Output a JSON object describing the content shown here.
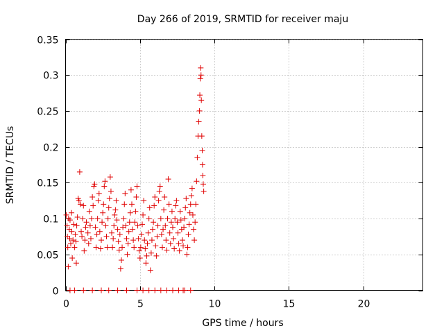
{
  "chart_data": {
    "type": "scatter",
    "title": "Day 266 of 2019, SRMTID for receiver maju",
    "xlabel": "GPS time / hours",
    "ylabel": "SRMTID / TECUs",
    "xlim": [
      0,
      24
    ],
    "ylim": [
      0,
      0.35
    ],
    "x_ticks": [
      0,
      5,
      10,
      15,
      20
    ],
    "y_ticks": [
      0,
      0.05,
      0.1,
      0.15,
      0.2,
      0.25,
      0.3,
      0.35
    ],
    "x_tick_labels": [
      "0",
      "5",
      "10",
      "15",
      "20"
    ],
    "y_tick_labels": [
      "0",
      "0.05",
      "0.1",
      "0.15",
      "0.2",
      "0.25",
      "0.3",
      "0.35"
    ],
    "grid": true,
    "marker": "plus",
    "series": [
      {
        "name": "SRMTID",
        "color": "#e00000",
        "points": [
          [
            0.05,
            0.105
          ],
          [
            0.1,
            0.09
          ],
          [
            0.12,
            0.075
          ],
          [
            0.15,
            0.06
          ],
          [
            0.18,
            0.033
          ],
          [
            0.2,
            0.1
          ],
          [
            0.25,
            0.085
          ],
          [
            0.28,
            0.072
          ],
          [
            0.3,
            0.098
          ],
          [
            0.35,
            0.065
          ],
          [
            0.4,
            0.108
          ],
          [
            0.42,
            0.082
          ],
          [
            0.45,
            0.045
          ],
          [
            0.5,
            0.07
          ],
          [
            0.55,
            0.092
          ],
          [
            0.6,
            0.06
          ],
          [
            0.65,
            0.078
          ],
          [
            0.7,
            0.068
          ],
          [
            0.72,
            0.038
          ],
          [
            0.75,
            0.09
          ],
          [
            0.8,
            0.102
          ],
          [
            0.85,
            0.128
          ],
          [
            0.9,
            0.125
          ],
          [
            0.95,
            0.165
          ],
          [
            1.0,
            0.12
          ],
          [
            1.05,
            0.082
          ],
          [
            1.1,
            0.075
          ],
          [
            1.15,
            0.1
          ],
          [
            1.2,
            0.118
          ],
          [
            1.25,
            0.055
          ],
          [
            1.3,
            0.07
          ],
          [
            1.35,
            0.088
          ],
          [
            1.4,
            0.095
          ],
          [
            1.5,
            0.08
          ],
          [
            1.55,
            0.065
          ],
          [
            1.6,
            0.11
          ],
          [
            1.65,
            0.09
          ],
          [
            1.7,
            0.072
          ],
          [
            1.75,
            0.1
          ],
          [
            1.8,
            0.13
          ],
          [
            1.85,
            0.118
          ],
          [
            1.9,
            0.145
          ],
          [
            1.95,
            0.148
          ],
          [
            2.0,
            0.088
          ],
          [
            2.05,
            0.06
          ],
          [
            2.1,
            0.078
          ],
          [
            2.15,
            0.1
          ],
          [
            2.2,
            0.125
          ],
          [
            2.25,
            0.135
          ],
          [
            2.3,
            0.082
          ],
          [
            2.35,
            0.058
          ],
          [
            2.4,
            0.07
          ],
          [
            2.45,
            0.095
          ],
          [
            2.5,
            0.108
          ],
          [
            2.55,
            0.12
          ],
          [
            2.6,
            0.145
          ],
          [
            2.65,
            0.152
          ],
          [
            2.7,
            0.09
          ],
          [
            2.75,
            0.075
          ],
          [
            2.8,
            0.06
          ],
          [
            2.85,
            0.1
          ],
          [
            2.9,
            0.115
          ],
          [
            2.95,
            0.128
          ],
          [
            3.0,
            0.158
          ],
          [
            3.05,
            0.138
          ],
          [
            3.1,
            0.08
          ],
          [
            3.15,
            0.06
          ],
          [
            3.2,
            0.072
          ],
          [
            3.25,
            0.09
          ],
          [
            3.3,
            0.105
          ],
          [
            3.35,
            0.112
          ],
          [
            3.4,
            0.125
          ],
          [
            3.45,
            0.098
          ],
          [
            3.5,
            0.085
          ],
          [
            3.55,
            0.068
          ],
          [
            3.6,
            0.056
          ],
          [
            3.65,
            0.078
          ],
          [
            3.7,
            0.03
          ],
          [
            3.75,
            0.042
          ],
          [
            3.8,
            0.06
          ],
          [
            3.85,
            0.088
          ],
          [
            3.9,
            0.1
          ],
          [
            3.95,
            0.12
          ],
          [
            4.0,
            0.135
          ],
          [
            4.05,
            0.09
          ],
          [
            4.1,
            0.072
          ],
          [
            4.15,
            0.05
          ],
          [
            4.2,
            0.065
          ],
          [
            4.25,
            0.082
          ],
          [
            4.3,
            0.095
          ],
          [
            4.35,
            0.108
          ],
          [
            4.4,
            0.14
          ],
          [
            4.45,
            0.12
          ],
          [
            4.5,
            0.085
          ],
          [
            4.55,
            0.07
          ],
          [
            4.6,
            0.06
          ],
          [
            4.65,
            0.095
          ],
          [
            4.7,
            0.11
          ],
          [
            4.75,
            0.13
          ],
          [
            4.8,
            0.145
          ],
          [
            4.85,
            0.09
          ],
          [
            4.9,
            0.072
          ],
          [
            4.95,
            0.055
          ],
          [
            5.0,
            0.045
          ],
          [
            5.05,
            0.06
          ],
          [
            5.1,
            0.078
          ],
          [
            5.15,
            0.092
          ],
          [
            5.2,
            0.105
          ],
          [
            5.25,
            0.125
          ],
          [
            5.3,
            0.07
          ],
          [
            5.35,
            0.058
          ],
          [
            5.4,
            0.038
          ],
          [
            5.45,
            0.048
          ],
          [
            5.5,
            0.065
          ],
          [
            5.55,
            0.08
          ],
          [
            5.6,
            0.1
          ],
          [
            5.65,
            0.115
          ],
          [
            5.7,
            0.028
          ],
          [
            5.75,
            0.052
          ],
          [
            5.8,
            0.07
          ],
          [
            5.85,
            0.085
          ],
          [
            5.9,
            0.095
          ],
          [
            5.95,
            0.118
          ],
          [
            6.0,
            0.13
          ],
          [
            6.05,
            0.062
          ],
          [
            6.1,
            0.048
          ],
          [
            6.15,
            0.075
          ],
          [
            6.2,
            0.09
          ],
          [
            6.25,
            0.125
          ],
          [
            6.3,
            0.138
          ],
          [
            6.35,
            0.145
          ],
          [
            6.4,
            0.1
          ],
          [
            6.45,
            0.078
          ],
          [
            6.5,
            0.06
          ],
          [
            6.55,
            0.085
          ],
          [
            6.6,
            0.112
          ],
          [
            6.65,
            0.13
          ],
          [
            6.7,
            0.09
          ],
          [
            6.75,
            0.07
          ],
          [
            6.8,
            0.056
          ],
          [
            6.85,
            0.1
          ],
          [
            6.9,
            0.155
          ],
          [
            6.95,
            0.12
          ],
          [
            7.0,
            0.08
          ],
          [
            7.05,
            0.065
          ],
          [
            7.1,
            0.095
          ],
          [
            7.15,
            0.11
          ],
          [
            7.2,
            0.088
          ],
          [
            7.25,
            0.072
          ],
          [
            7.3,
            0.058
          ],
          [
            7.35,
            0.1
          ],
          [
            7.4,
            0.118
          ],
          [
            7.45,
            0.125
          ],
          [
            7.5,
            0.095
          ],
          [
            7.55,
            0.08
          ],
          [
            7.6,
            0.065
          ],
          [
            7.65,
            0.055
          ],
          [
            7.7,
            0.11
          ],
          [
            7.75,
            0.098
          ],
          [
            7.8,
            0.085
          ],
          [
            7.85,
            0.07
          ],
          [
            7.9,
            0.062
          ],
          [
            7.95,
            0.088
          ],
          [
            8.0,
            0.1
          ],
          [
            8.05,
            0.115
          ],
          [
            8.1,
            0.128
          ],
          [
            8.15,
            0.05
          ],
          [
            8.2,
            0.06
          ],
          [
            8.25,
            0.078
          ],
          [
            8.3,
            0.092
          ],
          [
            8.35,
            0.108
          ],
          [
            8.4,
            0.12
          ],
          [
            8.45,
            0.132
          ],
          [
            8.5,
            0.142
          ],
          [
            8.55,
            0.105
          ],
          [
            8.6,
            0.085
          ],
          [
            8.65,
            0.07
          ],
          [
            8.7,
            0.095
          ],
          [
            8.75,
            0.12
          ],
          [
            8.8,
            0.152
          ],
          [
            8.85,
            0.185
          ],
          [
            8.9,
            0.215
          ],
          [
            8.95,
            0.235
          ],
          [
            9.0,
            0.25
          ],
          [
            9.02,
            0.272
          ],
          [
            9.05,
            0.295
          ],
          [
            9.08,
            0.31
          ],
          [
            9.1,
            0.3
          ],
          [
            9.12,
            0.265
          ],
          [
            9.15,
            0.215
          ],
          [
            9.18,
            0.195
          ],
          [
            9.2,
            0.175
          ],
          [
            9.22,
            0.16
          ],
          [
            9.25,
            0.148
          ],
          [
            9.28,
            0.138
          ],
          [
            0.3,
            0.0
          ],
          [
            0.6,
            0.0
          ],
          [
            1.2,
            0.0
          ],
          [
            1.8,
            0.0
          ],
          [
            2.4,
            0.0
          ],
          [
            3.5,
            0.0
          ],
          [
            4.1,
            0.0
          ],
          [
            4.8,
            0.0
          ],
          [
            5.2,
            0.0
          ],
          [
            5.6,
            0.0
          ],
          [
            6.0,
            0.0
          ],
          [
            6.4,
            0.0
          ],
          [
            6.8,
            0.0
          ],
          [
            7.2,
            0.0
          ],
          [
            7.6,
            0.0
          ],
          [
            8.0,
            0.0
          ],
          [
            8.4,
            0.0
          ],
          [
            2.9,
            0.0
          ],
          [
            7.9,
            0.0
          ]
        ]
      }
    ]
  }
}
